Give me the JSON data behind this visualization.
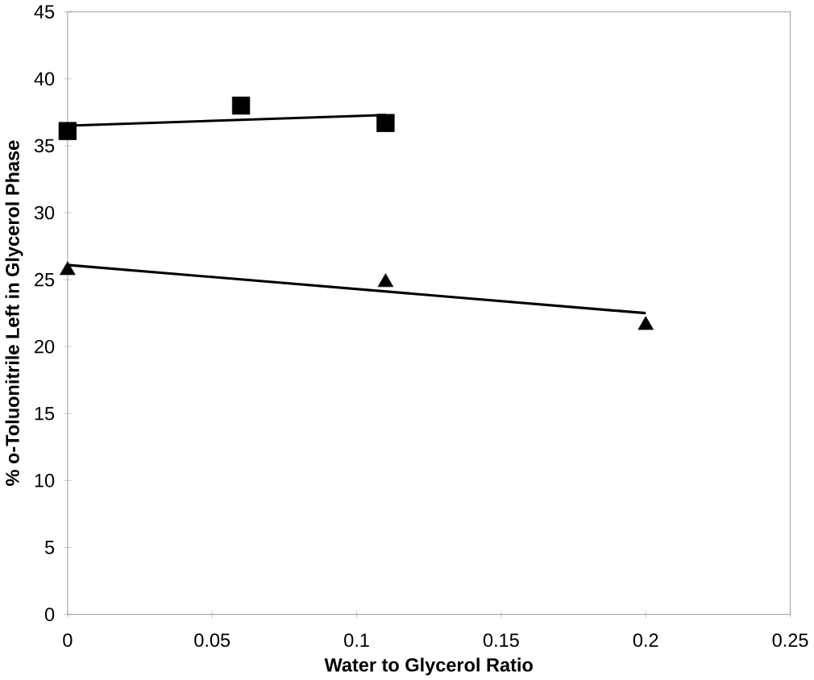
{
  "chart_data": {
    "type": "scatter",
    "xlabel": "Water to Glycerol Ratio",
    "ylabel": "% o-Toluonitrile Left in Glycerol Phase",
    "xlim": [
      0,
      0.25
    ],
    "xticks": [
      0,
      0.05,
      0.1,
      0.15,
      0.2,
      0.25
    ],
    "ylim": [
      0,
      45
    ],
    "yticks": [
      0,
      5,
      10,
      15,
      20,
      25,
      30,
      35,
      40,
      45
    ],
    "series": [
      {
        "marker": "square",
        "color": "#000000",
        "x": [
          0,
          0.06,
          0.11
        ],
        "values": [
          36.1,
          38.0,
          36.7
        ]
      },
      {
        "marker": "triangle",
        "color": "#000000",
        "x": [
          0,
          0.11,
          0.2
        ],
        "values": [
          25.7,
          24.8,
          21.6
        ]
      },
      {
        "type": "line",
        "color": "#000000",
        "x": [
          0,
          0.11
        ],
        "values": [
          36.5,
          37.3
        ]
      },
      {
        "type": "line",
        "color": "#000000",
        "x": [
          0,
          0.2
        ],
        "values": [
          26.1,
          22.5
        ]
      }
    ]
  }
}
